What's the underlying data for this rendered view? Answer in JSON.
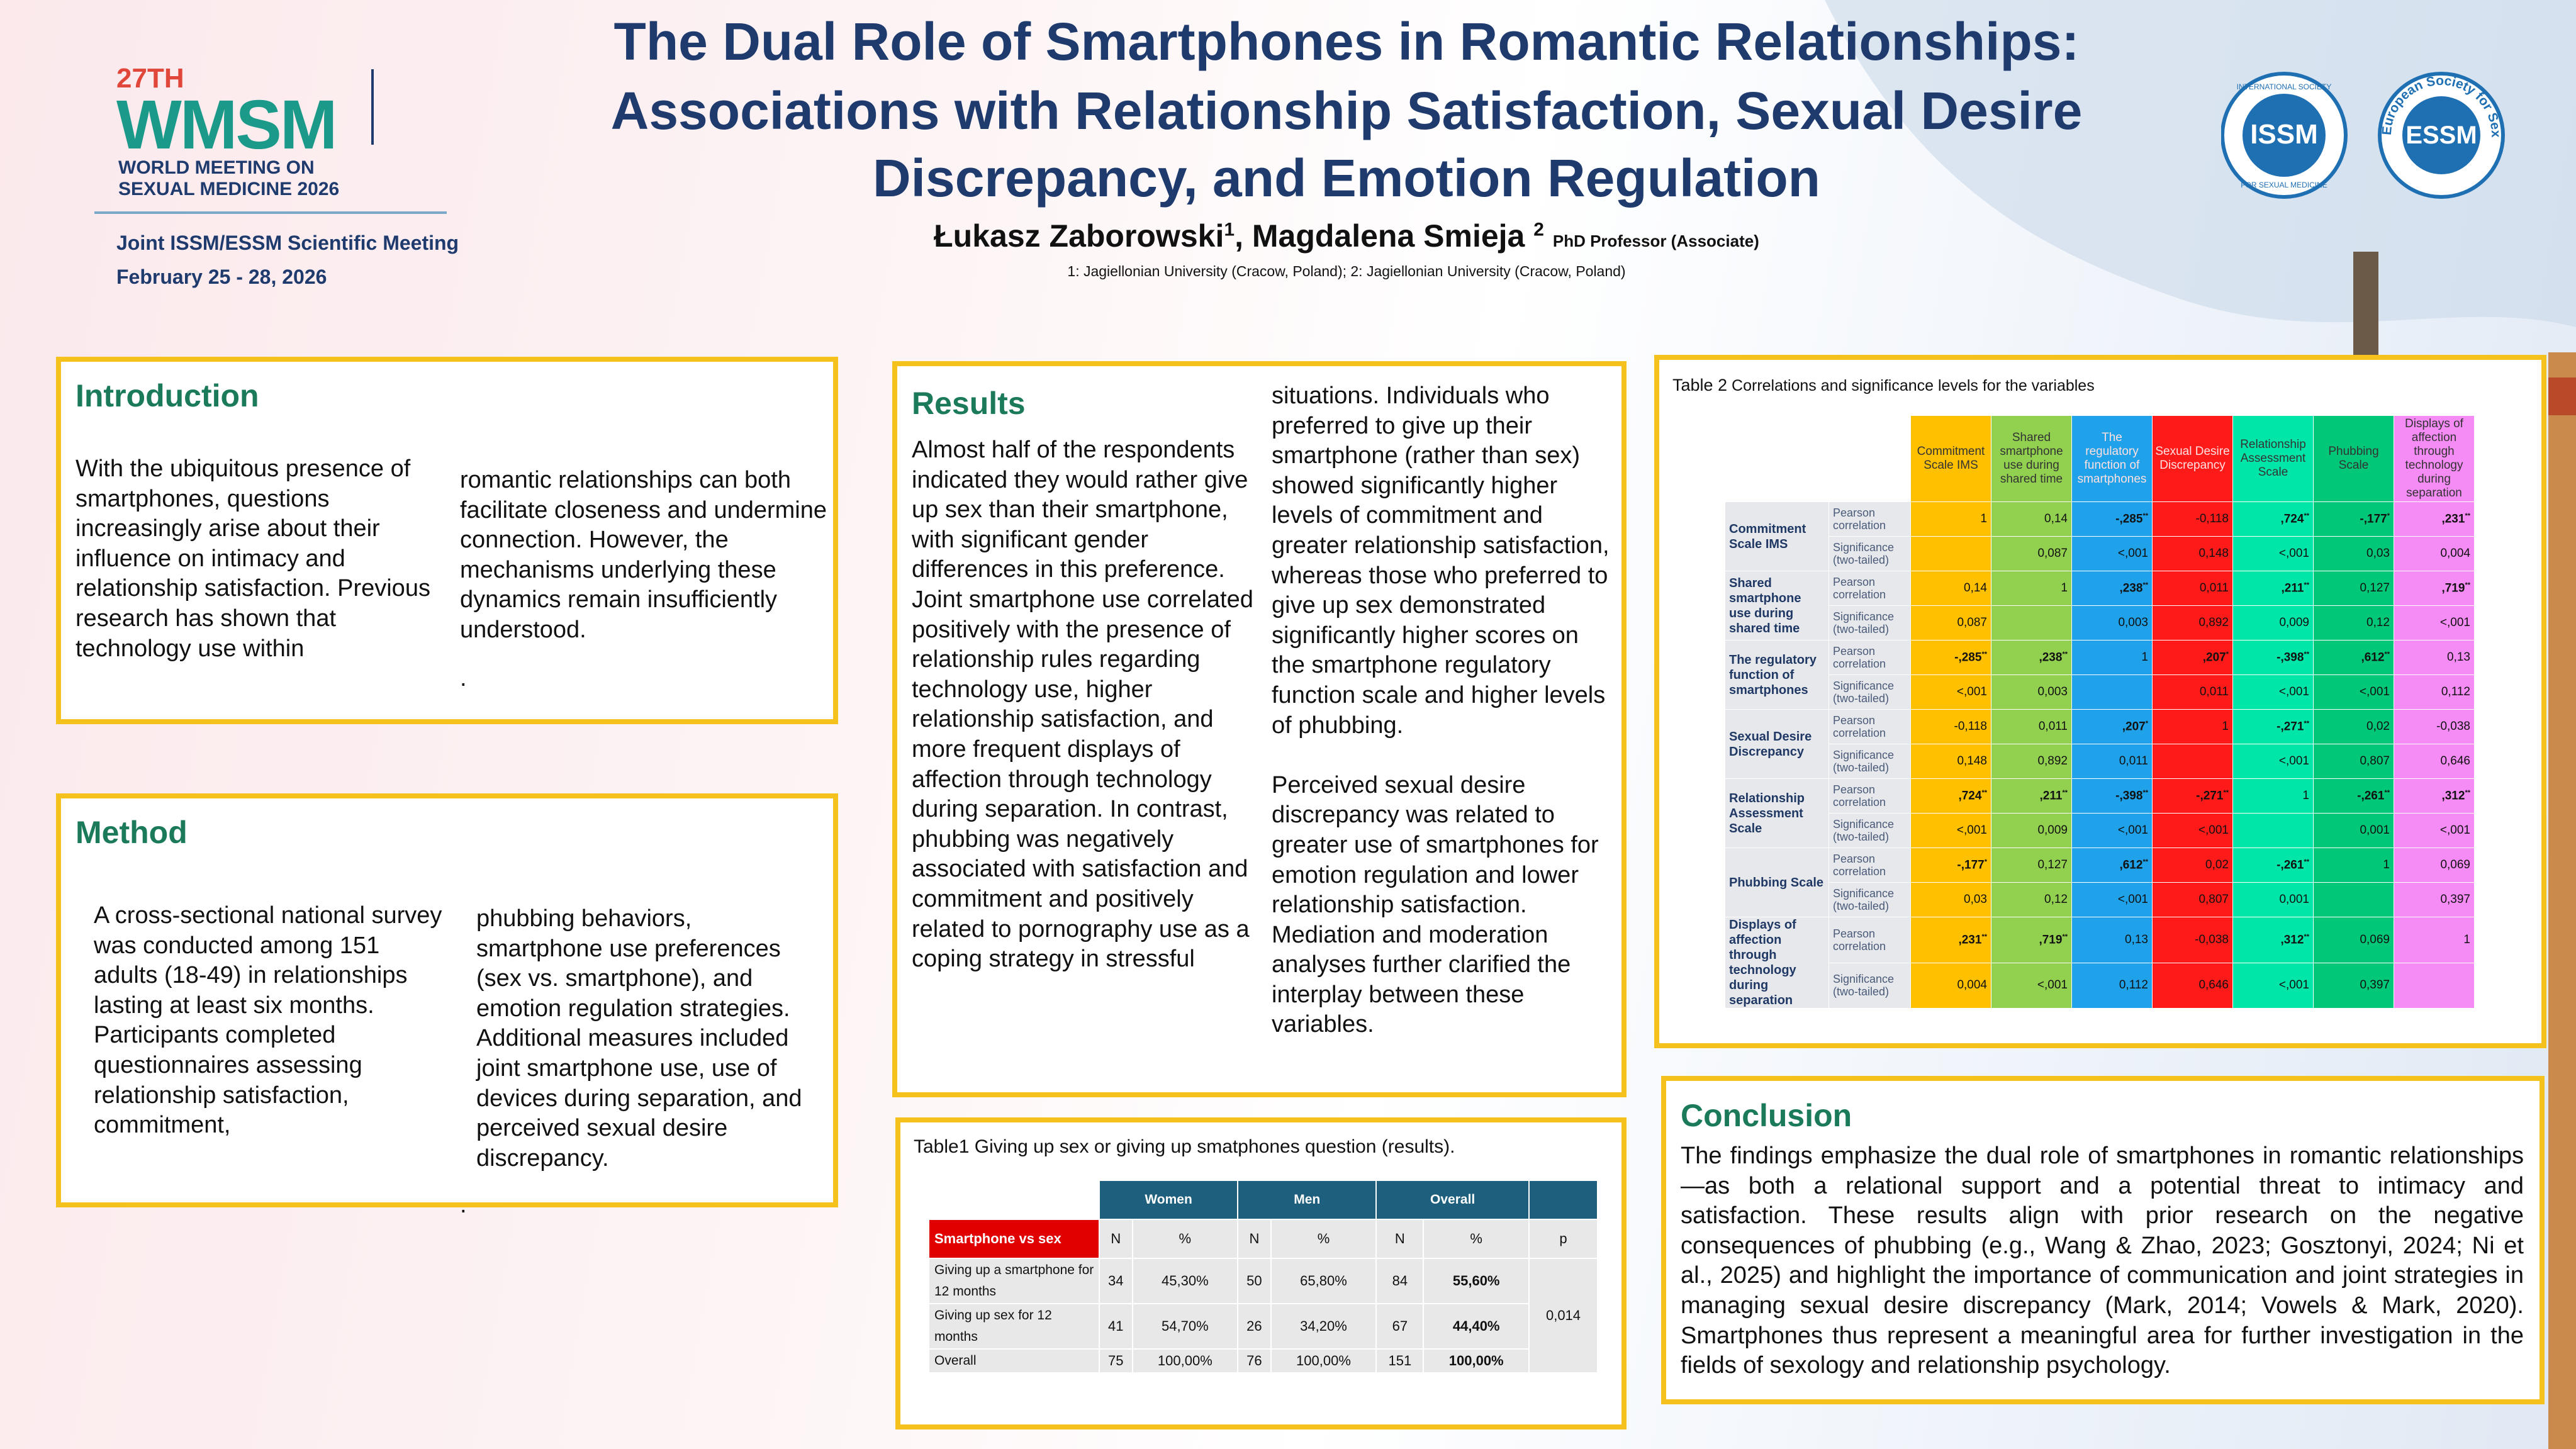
{
  "header": {
    "edition": "27TH",
    "brand": "WMSM",
    "meeting_line1": "WORLD MEETING ON",
    "meeting_line2": "SEXUAL MEDICINE 2026",
    "joint": "Joint ISSM/ESSM Scientific Meeting",
    "dates": "February 25 - 28, 2026",
    "title_lines": [
      "The Dual Role of Smartphones in Romantic Relationships:",
      "Associations with Relationship Satisfaction, Sexual Desire",
      "Discrepancy, and Emotion Regulation"
    ],
    "authors": [
      {
        "name": "Łukasz Zaborowski",
        "mark": "1"
      },
      {
        "name": "Magdalena Smieja",
        "mark": "2",
        "role": "PhD Professor (Associate)"
      }
    ],
    "affiliations": "1: Jagiellonian University (Cracow, Poland); 2: Jagiellonian University (Cracow, Poland)",
    "logo1": {
      "top": "INTERNATIONAL SOCIETY",
      "center": "ISSM",
      "bottom": "FOR SEXUAL MEDICINE"
    },
    "logo2": {
      "ring": "European Society for Sexual Medicine",
      "center": "ESSM"
    }
  },
  "introduction": {
    "heading": "Introduction",
    "left": "With the ubiquitous presence of smartphones, questions increasingly arise about their influence on intimacy and relationship satisfaction. Previous research has shown that technology use within",
    "right": "romantic relationships can both facilitate closeness and undermine connection. However, the mechanisms underlying these dynamics remain insufficiently understood.",
    "end": "."
  },
  "method": {
    "heading": "Method",
    "left": "A cross-sectional national survey was conducted among 151 adults (18-49) in relationships lasting at least six months. Participants completed questionnaires assessing relationship satisfaction, commitment,",
    "right": "phubbing behaviors, smartphone use preferences (sex vs. smartphone), and emotion regulation strategies. Additional measures included joint smartphone use, use of devices during separation, and perceived sexual desire discrepancy.",
    "end": "."
  },
  "results": {
    "heading": "Results",
    "left": "Almost half of the respondents indicated they would rather give up sex than their smartphone, with significant gender differences in this preference. Joint smartphone use correlated positively with the presence of relationship rules regarding technology use, higher relationship satisfaction, and more frequent displays of affection through technology during separation. In contrast, phubbing was negatively associated with satisfaction and commitment and positively related to pornography use as a coping strategy in stressful",
    "right": [
      "situations. Individuals who preferred to give up their smartphone (rather than sex) showed significantly higher levels of commitment and greater relationship satisfaction, whereas those who preferred to give up sex demonstrated significantly higher scores on the smartphone regulatory function scale and higher levels of phubbing.",
      "Perceived sexual desire discrepancy was related to greater use of smartphones for emotion regulation and lower relationship satisfaction. Mediation and moderation analyses further clarified the interplay between these variables."
    ]
  },
  "table1": {
    "caption": "Table1 Giving up sex or giving up smatphones question (results).",
    "groups": [
      "Women",
      "Men",
      "Overall"
    ],
    "corner": "Smartphone vs sex",
    "subheaders": [
      "N",
      "%",
      "N",
      "%",
      "N",
      "%",
      "p"
    ],
    "rows": [
      {
        "label": "Giving up a smartphone for 12 months",
        "values": [
          "34",
          "45,30%",
          "50",
          "65,80%",
          "84",
          "55,60%"
        ]
      },
      {
        "label": "Giving up sex for 12 months",
        "values": [
          "41",
          "54,70%",
          "26",
          "34,20%",
          "67",
          "44,40%"
        ]
      },
      {
        "label": "Overall",
        "values": [
          "75",
          "100,00%",
          "76",
          "100,00%",
          "151",
          "100,00%"
        ]
      }
    ],
    "p": "0,014"
  },
  "table2": {
    "caption_label": "Table 2",
    "caption": "Correlations and significance levels for the variables",
    "columns": [
      "Commitment Scale IMS",
      "Shared smartphone use during shared time",
      "The regulatory function of smartphones",
      "Sexual Desire Discrepancy",
      "Relationship Assessment Scale",
      "Phubbing Scale",
      "Displays of affection through technology during separation"
    ],
    "column_colors": [
      "#ffc000",
      "#92d050",
      "#1fa2ea",
      "#ff1a1a",
      "#00e6a8",
      "#00c878",
      "#f58cf5"
    ],
    "rows": [
      {
        "label": "Commitment Scale IMS",
        "stats": [
          {
            "name": "Pearson correlation",
            "values": [
              "1",
              "0,14",
              "-,285**",
              "-0,118",
              ",724**",
              "-,177*",
              ",231**"
            ]
          },
          {
            "name": "Significance (two-tailed)",
            "values": [
              null,
              "0,087",
              "<,001",
              "0,148",
              "<,001",
              "0,03",
              "0,004"
            ]
          }
        ]
      },
      {
        "label": "Shared smartphone use during shared time",
        "stats": [
          {
            "name": "Pearson correlation",
            "values": [
              "0,14",
              "1",
              ",238**",
              "0,011",
              ",211**",
              "0,127",
              ",719**"
            ]
          },
          {
            "name": "Significance (two-tailed)",
            "values": [
              "0,087",
              null,
              "0,003",
              "0,892",
              "0,009",
              "0,12",
              "<,001"
            ]
          }
        ]
      },
      {
        "label": "The regulatory function of smartphones",
        "stats": [
          {
            "name": "Pearson correlation",
            "values": [
              "-,285**",
              ",238**",
              "1",
              ",207*",
              "-,398**",
              ",612**",
              "0,13"
            ]
          },
          {
            "name": "Significance (two-tailed)",
            "values": [
              "<,001",
              "0,003",
              null,
              "0,011",
              "<,001",
              "<,001",
              "0,112"
            ]
          }
        ]
      },
      {
        "label": "Sexual Desire Discrepancy",
        "stats": [
          {
            "name": "Pearson correlation",
            "values": [
              "-0,118",
              "0,011",
              ",207*",
              "1",
              "-,271**",
              "0,02",
              "-0,038"
            ]
          },
          {
            "name": "Significance (two-tailed)",
            "values": [
              "0,148",
              "0,892",
              "0,011",
              null,
              "<,001",
              "0,807",
              "0,646"
            ]
          }
        ]
      },
      {
        "label": "Relationship Assessment Scale",
        "stats": [
          {
            "name": "Pearson correlation",
            "values": [
              ",724**",
              ",211**",
              "-,398**",
              "-,271**",
              "1",
              "-,261**",
              ",312**"
            ]
          },
          {
            "name": "Significance (two-tailed)",
            "values": [
              "<,001",
              "0,009",
              "<,001",
              "<,001",
              null,
              "0,001",
              "<,001"
            ]
          }
        ]
      },
      {
        "label": "Phubbing Scale",
        "stats": [
          {
            "name": "Pearson correlation",
            "values": [
              "-,177*",
              "0,127",
              ",612**",
              "0,02",
              "-,261**",
              "1",
              "0,069"
            ]
          },
          {
            "name": "Significance (two-tailed)",
            "values": [
              "0,03",
              "0,12",
              "<,001",
              "0,807",
              "0,001",
              null,
              "0,397"
            ]
          }
        ]
      },
      {
        "label": "Displays of affection through technology during separation",
        "stats": [
          {
            "name": "Pearson correlation",
            "values": [
              ",231**",
              ",719**",
              "0,13",
              "-0,038",
              ",312**",
              "0,069",
              "1"
            ]
          },
          {
            "name": "Significance (two-tailed)",
            "values": [
              "0,004",
              "<,001",
              "0,112",
              "0,646",
              "<,001",
              "0,397",
              null
            ]
          }
        ]
      }
    ]
  },
  "conclusion": {
    "heading": "Conclusion",
    "text": "The findings emphasize the dual role of smartphones in romantic relationships—as both a relational support and a potential threat to intimacy and satisfaction. These results align with prior research on the negative consequences of phubbing (e.g., Wang & Zhao, 2023; Gosztonyi, 2024; Ni et al., 2025) and highlight the importance of communication and joint strategies in managing sexual desire discrepancy (Mark, 2014; Vowels & Mark, 2020). Smartphones thus represent a meaningful area for further investigation in the fields of sexology and relationship psychology."
  }
}
